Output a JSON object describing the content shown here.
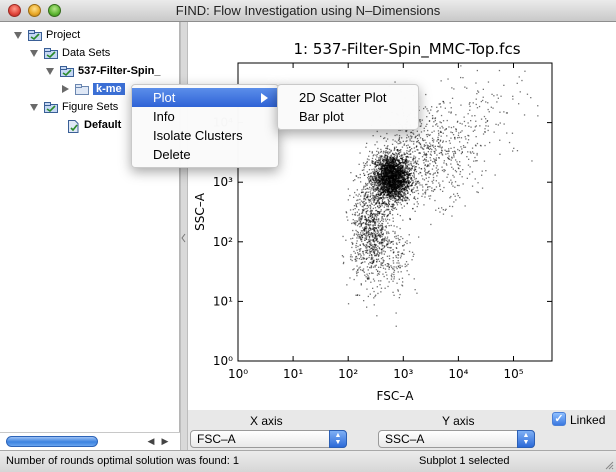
{
  "window": {
    "title": "FIND: Flow Investigation using N–Dimensions"
  },
  "tree": {
    "project": "Project",
    "data_sets": "Data Sets",
    "file": "537-Filter-Spin_",
    "selected_node": "k-me",
    "figure_sets": "Figure Sets",
    "default": "Default"
  },
  "context_menu": {
    "items": [
      "Plot",
      "Info",
      "Isolate Clusters",
      "Delete"
    ],
    "highlighted": "Plot",
    "submenu": [
      "2D Scatter Plot",
      "Bar plot"
    ]
  },
  "chart_data": {
    "type": "scatter",
    "title": "1: 537-Filter-Spin_MMC-Top.fcs",
    "xlabel": "FSC–A",
    "ylabel": "SSC–A",
    "xscale": "log",
    "yscale": "log",
    "xlim": [
      1,
      500000
    ],
    "ylim": [
      1,
      100000
    ],
    "xticks": [
      1,
      10,
      100,
      1000,
      10000,
      100000
    ],
    "xtick_labels": [
      "10⁰",
      "10¹",
      "10²",
      "10³",
      "10⁴",
      "10⁵"
    ],
    "yticks": [
      1,
      10,
      100,
      1000,
      10000
    ],
    "ytick_labels": [
      "10⁰",
      "10¹",
      "10²",
      "10³",
      "10⁴"
    ],
    "point_color": "#000000",
    "grid": false,
    "clusters": [
      {
        "center_x": 600,
        "center_y": 1200,
        "spread_log_x": 0.17,
        "spread_log_y": 0.2,
        "n": 2600
      },
      {
        "center_x": 250,
        "center_y": 150,
        "spread_log_x": 0.18,
        "spread_log_y": 0.45,
        "n": 900
      },
      {
        "center_x": 2500,
        "center_y": 3000,
        "spread_log_x": 0.45,
        "spread_log_y": 0.4,
        "n": 700
      },
      {
        "center_x": 30000,
        "center_y": 15000,
        "spread_log_x": 0.45,
        "spread_log_y": 0.4,
        "n": 120
      },
      {
        "center_x": 700,
        "center_y": 60,
        "spread_log_x": 0.2,
        "spread_log_y": 0.35,
        "n": 150
      }
    ]
  },
  "controls": {
    "x_axis_label": "X axis",
    "y_axis_label": "Y axis",
    "x_axis_value": "FSC–A",
    "y_axis_value": "SSC–A",
    "linked_label": "Linked",
    "linked": true
  },
  "status": {
    "left": "Number of rounds optimal solution was found: 1",
    "right": "Subplot 1 selected"
  },
  "colors": {
    "selection": "#3b6fd5",
    "accent": "#2f63d6"
  }
}
